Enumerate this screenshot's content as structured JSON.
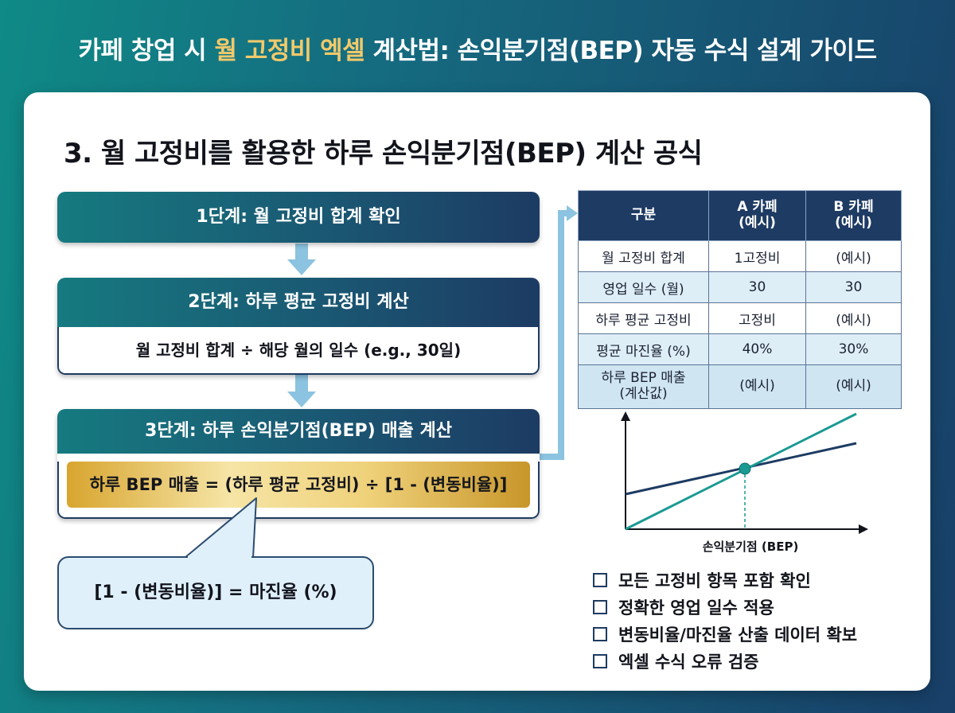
{
  "header": {
    "title_part1": "카페 창업 시 ",
    "title_highlight": "월 고정비 엑셀",
    "title_part2": " 계산법: 손익분기점(BEP) 자동 수식 설계 가이드"
  },
  "section": {
    "title": "3. 월 고정비를 활용한 하루 손익분기점(BEP) 계산 공식"
  },
  "steps": [
    {
      "title": "1단계: 월 고정비 합계 확인"
    },
    {
      "title": "2단계: 하루 평균 고정비 계산",
      "body": "월 고정비 합계 ÷ 해당 월의 일수 (e.g., 30일)"
    },
    {
      "title": "3단계: 하루 손익분기점(BEP) 매출 계산",
      "formula": "하루 BEP 매출 = (하루 평균 고정비) ÷ [1 - (변동비율)]"
    }
  ],
  "callout": {
    "text": "[1 - (변동비율)] = 마진율 (%)"
  },
  "table": {
    "headers": [
      "구분",
      "A 카페\n(예시)",
      "B 카페\n(예시)"
    ],
    "rows": [
      [
        "월 고정비 합계",
        "1고정비",
        "(예시)"
      ],
      [
        "영업 일수 (월)",
        "30",
        "30"
      ],
      [
        "하루 평균 고정비",
        "고정비",
        "(예시)"
      ],
      [
        "평균 마진율 (%)",
        "40%",
        "30%"
      ],
      [
        "하루 BEP 매출\n(계산값)",
        "(예시)",
        "(예시)"
      ]
    ]
  },
  "bep_chart": {
    "xlabel": "손익분기점 (BEP)",
    "colors": {
      "revenue": "#1a9a93",
      "cost": "#1d3b63",
      "point": "#1a9a93"
    }
  },
  "checklist": [
    "모든 고정비 항목 포함 확인",
    "정확한 영업 일수 적용",
    "변동비율/마진율 산출 데이터 확보",
    "엑셀 수식 오류 검증"
  ]
}
